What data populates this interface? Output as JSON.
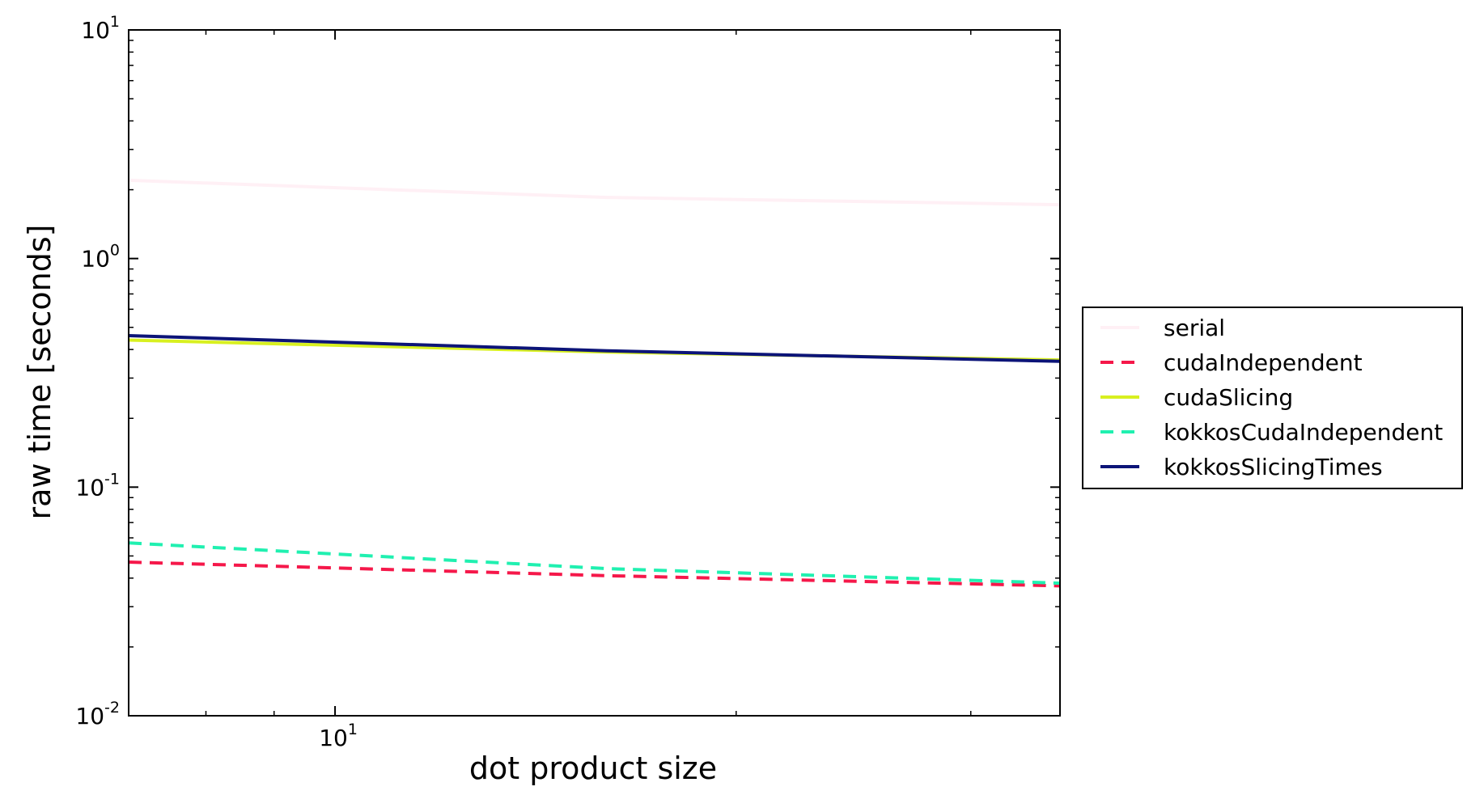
{
  "chart_data": {
    "type": "line",
    "title": "",
    "xlabel": "dot product size",
    "ylabel": "raw time [seconds]",
    "xscale": "log",
    "yscale": "log",
    "xlim": [
      7,
      35
    ],
    "ylim": [
      0.01,
      10
    ],
    "x_ticks": [
      {
        "value": 10,
        "base": "10",
        "exp": "1"
      }
    ],
    "y_ticks": [
      {
        "value": 0.01,
        "base": "10",
        "exp": "-2"
      },
      {
        "value": 0.1,
        "base": "10",
        "exp": "-1"
      },
      {
        "value": 1,
        "base": "10",
        "exp": "0"
      },
      {
        "value": 10,
        "base": "10",
        "exp": "1"
      }
    ],
    "grid": false,
    "legend_position": "right, outside plot",
    "series": [
      {
        "name": "serial",
        "color": "#fff0f5",
        "style": "solid",
        "x": [
          7,
          16,
          35
        ],
        "y": [
          2.2,
          1.85,
          1.72
        ]
      },
      {
        "name": "cudaIndependent",
        "color": "#f5184a",
        "style": "dashed",
        "x": [
          7,
          16,
          35
        ],
        "y": [
          0.047,
          0.041,
          0.037
        ]
      },
      {
        "name": "cudaSlicing",
        "color": "#d8f020",
        "style": "solid",
        "x": [
          7,
          16,
          35
        ],
        "y": [
          0.44,
          0.39,
          0.36
        ]
      },
      {
        "name": "kokkosCudaIndependent",
        "color": "#20f0b0",
        "style": "dashed",
        "x": [
          7,
          16,
          35
        ],
        "y": [
          0.057,
          0.044,
          0.038
        ]
      },
      {
        "name": "kokkosSlicingTimes",
        "color": "#0c1478",
        "style": "solid",
        "x": [
          7,
          16,
          35
        ],
        "y": [
          0.46,
          0.395,
          0.355
        ]
      }
    ]
  }
}
